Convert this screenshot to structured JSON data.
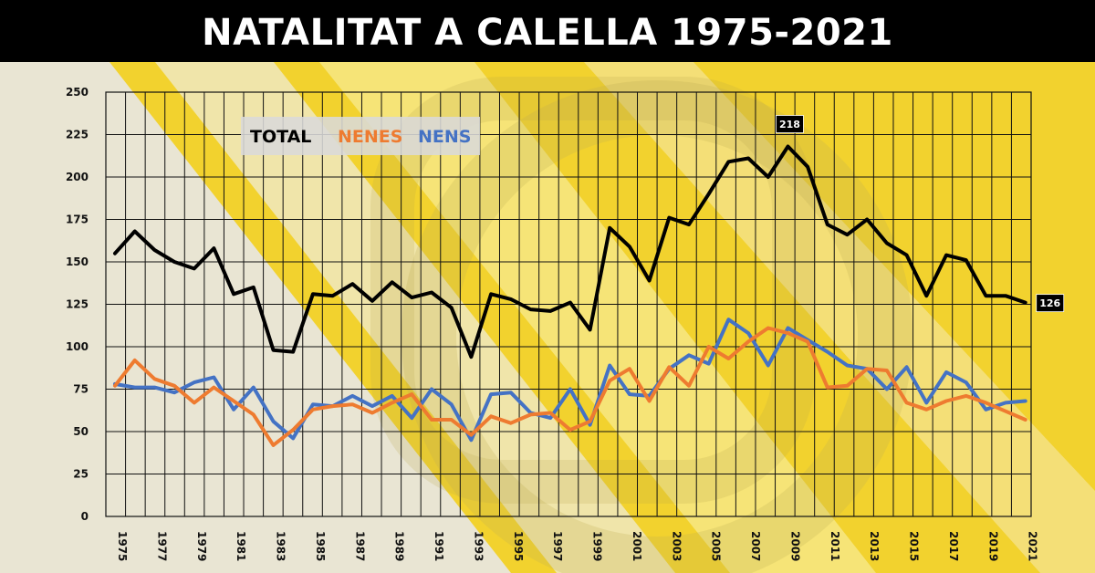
{
  "title": "NATALITAT A CALELLA 1975-2021",
  "colors": {
    "background": "#f2d22e",
    "total": "#000000",
    "nenes": "#ee7b30",
    "nens": "#4472c4"
  },
  "chart_data": {
    "type": "line",
    "title": "NATALITAT A CALELLA 1975-2021",
    "x": [
      1975,
      1976,
      1977,
      1978,
      1979,
      1980,
      1981,
      1982,
      1983,
      1984,
      1985,
      1986,
      1987,
      1988,
      1989,
      1990,
      1991,
      1992,
      1993,
      1994,
      1995,
      1996,
      1997,
      1998,
      1999,
      2000,
      2001,
      2002,
      2003,
      2004,
      2005,
      2006,
      2007,
      2008,
      2009,
      2010,
      2011,
      2012,
      2013,
      2014,
      2015,
      2016,
      2017,
      2018,
      2019,
      2020,
      2021
    ],
    "x_tick_labels": [
      "1975",
      "1977",
      "1979",
      "1981",
      "1983",
      "1985",
      "1987",
      "1989",
      "1991",
      "1993",
      "1995",
      "1997",
      "1999",
      "2001",
      "2003",
      "2005",
      "2007",
      "2009",
      "2011",
      "2013",
      "2015",
      "2017",
      "2019",
      "2021"
    ],
    "ylim": [
      0,
      250
    ],
    "y_ticks": [
      "0",
      "25",
      "50",
      "75",
      "100",
      "125",
      "150",
      "175",
      "200",
      "225",
      "250"
    ],
    "grid": true,
    "legend_position": "top-left",
    "series": [
      {
        "name": "TOTAL",
        "color": "#000000",
        "values": [
          155,
          168,
          157,
          150,
          146,
          158,
          131,
          135,
          98,
          97,
          131,
          130,
          137,
          127,
          138,
          129,
          132,
          123,
          94,
          131,
          128,
          122,
          121,
          126,
          110,
          170,
          159,
          139,
          176,
          172,
          190,
          209,
          211,
          200,
          218,
          206,
          172,
          166,
          175,
          161,
          154,
          130,
          154,
          151,
          130,
          130,
          126
        ]
      },
      {
        "name": "NENES",
        "color": "#ee7b30",
        "values": [
          77,
          92,
          81,
          77,
          67,
          76,
          68,
          60,
          42,
          51,
          63,
          65,
          66,
          61,
          67,
          72,
          57,
          57,
          48,
          59,
          55,
          60,
          61,
          51,
          56,
          80,
          87,
          68,
          88,
          77,
          100,
          93,
          103,
          111,
          108,
          103,
          76,
          77,
          87,
          86,
          67,
          63,
          68,
          71,
          67,
          62,
          57
        ]
      },
      {
        "name": "NENS",
        "color": "#4472c4",
        "values": [
          78,
          76,
          76,
          73,
          79,
          82,
          63,
          76,
          56,
          46,
          66,
          65,
          71,
          65,
          71,
          58,
          75,
          66,
          45,
          72,
          73,
          61,
          58,
          75,
          54,
          89,
          72,
          71,
          87,
          95,
          90,
          116,
          108,
          89,
          111,
          104,
          97,
          89,
          87,
          75,
          88,
          67,
          85,
          79,
          63,
          67,
          68
        ]
      }
    ],
    "annotations": [
      {
        "label": "218",
        "x": 2009,
        "series": "TOTAL"
      },
      {
        "label": "126",
        "x": 2021,
        "series": "TOTAL"
      }
    ]
  }
}
